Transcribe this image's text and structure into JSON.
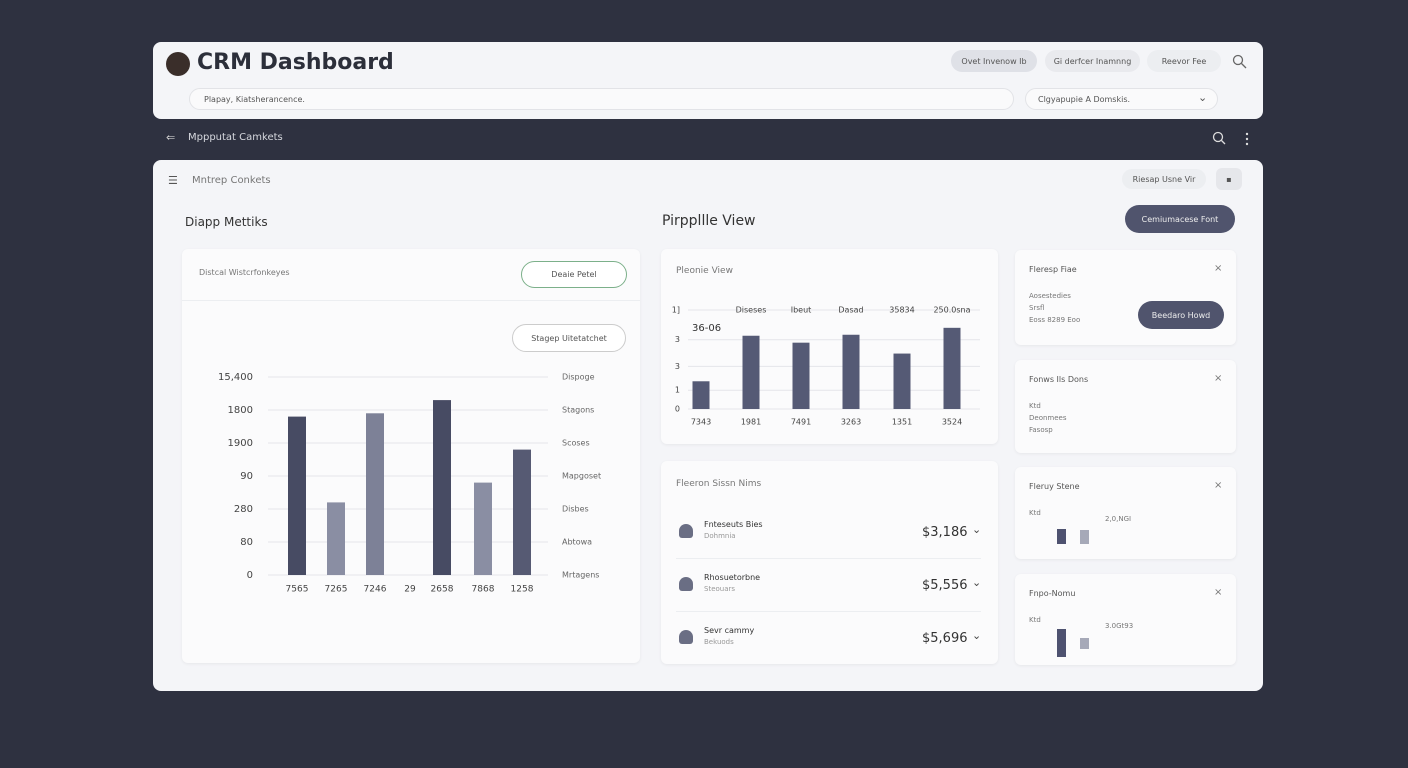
{
  "header": {
    "title": "CRM Dashboard",
    "tabs": [
      "Ovet Invenow Ib",
      "Gi derfcer Inamnng",
      "Reevor Fee"
    ],
    "search_placeholder": "Plapay, Kiatsherancence.",
    "dropdown": "Clgyapupie A Domskis."
  },
  "subnav": {
    "title": "Mppputat Camkets"
  },
  "main": {
    "nav_label": "Mntrep Conkets",
    "filter": "Riesap Usne Vir",
    "left_title": "Diapp Mettiks",
    "right_title": "Pirppllle View",
    "action_button": "Cemiumacese Font"
  },
  "left_panel": {
    "title": "Distcal Wistcrfonkeyes",
    "button": "Deaie Petel",
    "select": "Stagep Uitetatchet"
  },
  "pipeline_panel": {
    "title": "Pleonie View"
  },
  "deals_panel": {
    "title": "Fleeron Sissn Nims",
    "rows": [
      {
        "name": "Fnteseuts Bies",
        "sub": "Dohmnia",
        "amount": "$3,186"
      },
      {
        "name": "Rhosuetorbne",
        "sub": "Steouars",
        "amount": "$5,556"
      },
      {
        "name": "Sevr cammy",
        "sub": "Bekuods",
        "amount": "$5,696"
      }
    ]
  },
  "side_cards": [
    {
      "title": "Fleresp Fiae",
      "lines": [
        "Aosestedies",
        "Srsfl",
        "Eoss  8289 Eoo"
      ],
      "button": "Beedaro Howd"
    },
    {
      "title": "Fonws Ils Dons",
      "lines": [
        "Ktd",
        "Deonmees",
        "Fasosp"
      ]
    },
    {
      "title": "Fleruy Stene",
      "lines": [
        "Ktd",
        "2,0,NGI"
      ]
    },
    {
      "title": "Fnpo-Nomu",
      "lines": [
        "Ktd",
        "3.0Gt93"
      ]
    }
  ],
  "chart_data": [
    {
      "type": "bar",
      "categories": [
        "7565",
        "7265",
        "7246",
        "29",
        "2658",
        "7868",
        "1258"
      ],
      "values": [
        4.8,
        2.2,
        4.9,
        null,
        5.3,
        2.8,
        3.8
      ],
      "colors": [
        "#474b63",
        "#8a8ea3",
        "#7d8197",
        null,
        "#474b63",
        "#8a8ea3",
        "#565a73"
      ],
      "ylim": [
        0,
        6
      ],
      "yticks": [
        0,
        {
          "value": 1,
          "label": "80"
        },
        {
          "value": 2,
          "label": "280"
        },
        {
          "value": 3,
          "label": "90"
        },
        {
          "value": 4,
          "label": "1900"
        },
        {
          "value": 5,
          "label": "1800"
        },
        {
          "value": 6,
          "label": "15,400"
        }
      ],
      "right_labels": [
        "Mrtagens",
        "Abtowa",
        "Disbes",
        "Mapgoset",
        "Scoses",
        "Stagons",
        "Dispoge"
      ],
      "grid": true
    },
    {
      "type": "bar",
      "categories": [
        "7343",
        "1981",
        "7491",
        "3263",
        "1351",
        "3524"
      ],
      "values": [
        28,
        74,
        67,
        75,
        56,
        82
      ],
      "color": "#555a75",
      "ylim": [
        0,
        100
      ],
      "yticks": [
        0,
        {
          "value": 19,
          "label": "1"
        },
        {
          "value": 43,
          "label": "3"
        },
        {
          "value": 70,
          "label": "3"
        },
        {
          "value": 100,
          "label": "1]"
        }
      ],
      "top_labels": [
        "Diseses",
        "Ibeut",
        "Dasad",
        "35834",
        "250.0sna"
      ],
      "annotation": "36-06",
      "grid": true
    }
  ]
}
